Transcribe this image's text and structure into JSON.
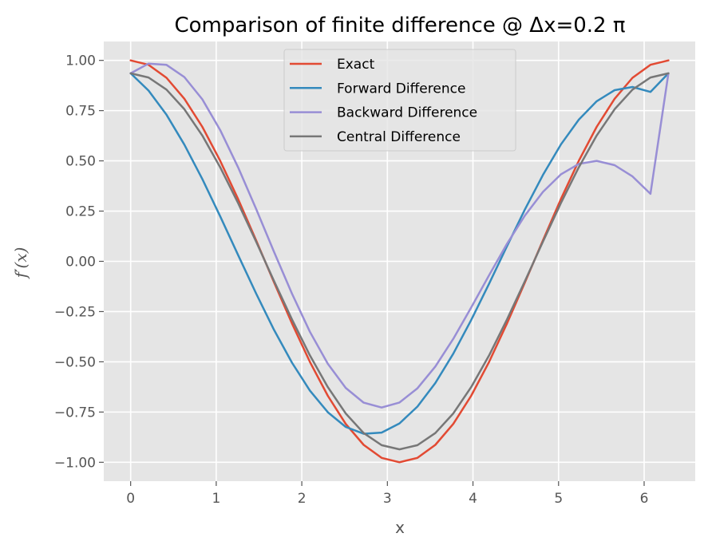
{
  "chart_data": {
    "type": "line",
    "title": "Comparison of finite difference @ Δx=0.2 π",
    "xlabel": "x",
    "ylabel": "f′(x)",
    "xlim": [
      -0.314,
      6.597
    ],
    "ylim": [
      -1.094,
      1.094
    ],
    "xticks": [
      0,
      1,
      2,
      3,
      4,
      5,
      6
    ],
    "xtick_labels": [
      "0",
      "1",
      "2",
      "3",
      "4",
      "5",
      "6"
    ],
    "yticks": [
      1.0,
      0.75,
      0.5,
      0.25,
      0.0,
      -0.25,
      -0.5,
      -0.75,
      -1.0
    ],
    "ytick_labels": [
      "1.00",
      "0.75",
      "0.50",
      "0.25",
      "0.00",
      "−0.25",
      "−0.50",
      "−0.75",
      "−1.00"
    ],
    "grid": true,
    "legend_position": "top-center",
    "x": [
      0.0,
      0.2094,
      0.4189,
      0.6283,
      0.8378,
      1.0472,
      1.2566,
      1.4661,
      1.6755,
      1.885,
      2.0944,
      2.3038,
      2.5133,
      2.7227,
      2.9322,
      3.1416,
      3.351,
      3.5605,
      3.7699,
      3.9794,
      4.1888,
      4.3982,
      4.6077,
      4.8171,
      5.0265,
      5.236,
      5.4454,
      5.6549,
      5.8643,
      6.0737,
      6.2832
    ],
    "series": [
      {
        "name": "Exact",
        "color": "#E24A33",
        "values": [
          1.0,
          0.9781,
          0.9135,
          0.809,
          0.6691,
          0.5,
          0.309,
          0.1045,
          -0.1045,
          -0.309,
          -0.5,
          -0.6691,
          -0.809,
          -0.9135,
          -0.9781,
          -1.0,
          -0.9781,
          -0.9135,
          -0.809,
          -0.6691,
          -0.5,
          -0.309,
          -0.1045,
          0.1045,
          0.309,
          0.5,
          0.6691,
          0.809,
          0.9135,
          0.9781,
          1.0
        ]
      },
      {
        "name": "Forward Difference",
        "color": "#348ABD",
        "values": [
          0.9355,
          0.8496,
          0.7296,
          0.5807,
          0.4094,
          0.2234,
          0.0307,
          -0.1603,
          -0.3411,
          -0.5042,
          -0.6428,
          -0.7509,
          -0.8238,
          -0.8581,
          -0.8522,
          -0.8064,
          -0.7229,
          -0.6055,
          -0.4596,
          -0.2921,
          -0.1108,
          0.0759,
          0.2589,
          0.4298,
          0.5808,
          0.7048,
          0.7966,
          0.8518,
          0.8676,
          0.8432,
          0.9355
        ]
      },
      {
        "name": "Backward Difference",
        "color": "#988ED5",
        "values": [
          0.9355,
          0.9839,
          0.9776,
          0.9169,
          0.8061,
          0.6528,
          0.4668,
          0.2606,
          0.0471,
          -0.1607,
          -0.3501,
          -0.5097,
          -0.6296,
          -0.7033,
          -0.7274,
          -0.7023,
          -0.6319,
          -0.5232,
          -0.3856,
          -0.2301,
          -0.0686,
          0.0873,
          0.2282,
          0.3456,
          0.4325,
          0.4847,
          0.5,
          0.4785,
          0.4224,
          0.3359,
          0.9355
        ]
      },
      {
        "name": "Central Difference",
        "color": "#777777",
        "values": [
          0.9355,
          0.9149,
          0.8544,
          0.7568,
          0.6259,
          0.4677,
          0.2891,
          0.0978,
          -0.0978,
          -0.2891,
          -0.4677,
          -0.6259,
          -0.7568,
          -0.8544,
          -0.9149,
          -0.9355,
          -0.9149,
          -0.8544,
          -0.7568,
          -0.6259,
          -0.4677,
          -0.2891,
          -0.0978,
          0.0978,
          0.2891,
          0.4677,
          0.6259,
          0.7568,
          0.8544,
          0.9149,
          0.9355
        ]
      }
    ]
  }
}
